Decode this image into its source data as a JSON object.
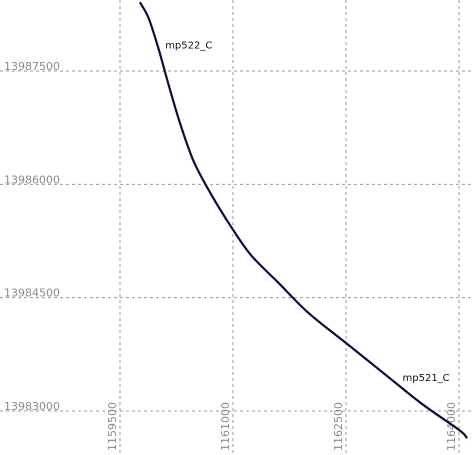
{
  "map": {
    "x_ticks": [
      {
        "value": 1159500,
        "label": "1159500"
      },
      {
        "value": 1161000,
        "label": "1161000"
      },
      {
        "value": 1162500,
        "label": "1162500"
      },
      {
        "value": 1164000,
        "label": "1164000"
      }
    ],
    "y_ticks": [
      {
        "value": 13987500,
        "label": "13987500"
      },
      {
        "value": 13986000,
        "label": "13986000"
      },
      {
        "value": 13984500,
        "label": "13984500"
      },
      {
        "value": 13983000,
        "label": "13983000"
      }
    ],
    "feature_labels": [
      {
        "name": "mp522_C",
        "x": 1160100,
        "y": 13987800
      },
      {
        "name": "mp521_C",
        "x": 1163250,
        "y": 13983400
      }
    ],
    "line": [
      [
        1159770,
        13988400
      ],
      [
        1159880,
        13988200
      ],
      [
        1160010,
        13987800
      ],
      [
        1160150,
        13987300
      ],
      [
        1160300,
        13986800
      ],
      [
        1160480,
        13986300
      ],
      [
        1160720,
        13985850
      ],
      [
        1161000,
        13985400
      ],
      [
        1161250,
        13985050
      ],
      [
        1161600,
        13984700
      ],
      [
        1162000,
        13984300
      ],
      [
        1162500,
        13983900
      ],
      [
        1163000,
        13983500
      ],
      [
        1163500,
        13983100
      ],
      [
        1164000,
        13982750
      ],
      [
        1164100,
        13982650
      ]
    ]
  }
}
